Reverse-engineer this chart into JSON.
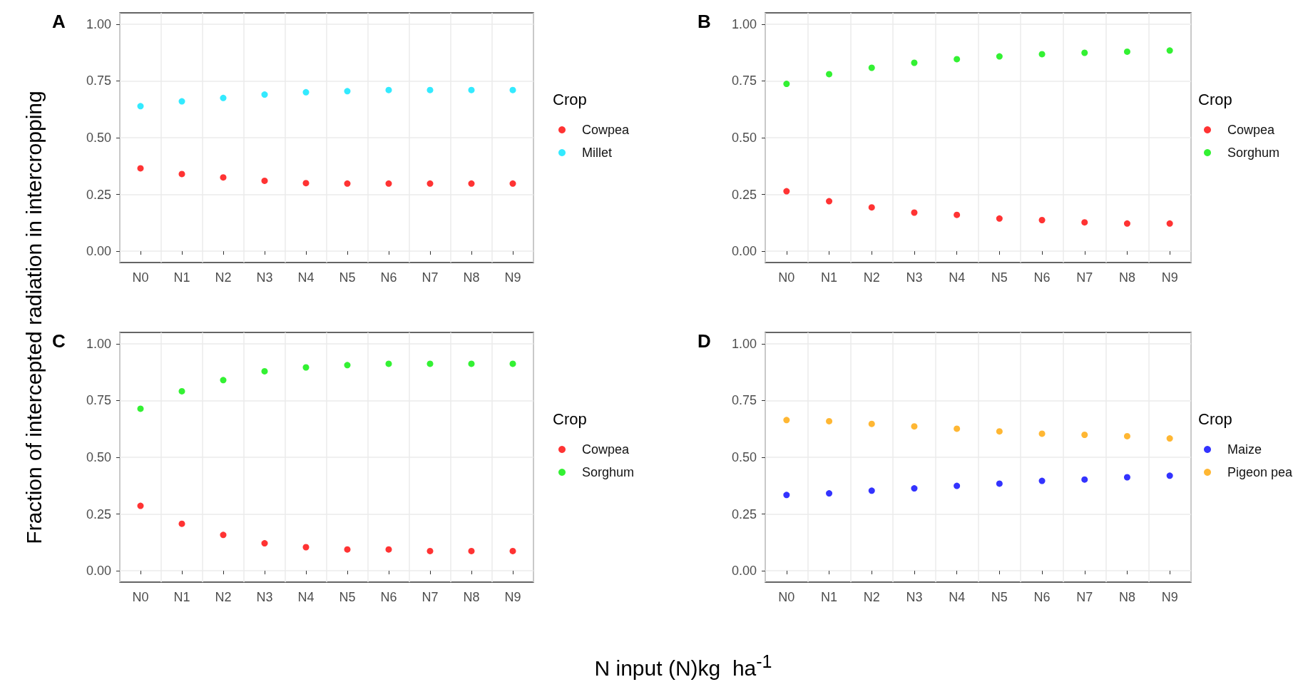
{
  "chart_data": [
    {
      "type": "scatter",
      "title": "A",
      "ylabel": "Fraction of intercepted radiation in intercropping",
      "legend_title": "Crop",
      "categories": [
        "N0",
        "N1",
        "N2",
        "N3",
        "N4",
        "N5",
        "N6",
        "N7",
        "N8",
        "N9"
      ],
      "series": [
        {
          "name": "Cowpea",
          "color": "#ff0000",
          "values": [
            0.365,
            0.34,
            0.325,
            0.31,
            0.3,
            0.298,
            0.298,
            0.298,
            0.298,
            0.298
          ]
        },
        {
          "name": "Millet",
          "color": "#00e5ff",
          "values": [
            0.639,
            0.66,
            0.675,
            0.69,
            0.7,
            0.705,
            0.71,
            0.71,
            0.71,
            0.71
          ]
        }
      ],
      "ylim": [
        -0.05,
        1.05
      ],
      "yticks": [
        {
          "value": 0,
          "label": "0.00"
        },
        {
          "value": 0.25,
          "label": "0.25"
        },
        {
          "value": 0.5,
          "label": "0.50"
        },
        {
          "value": 0.75,
          "label": "0.75"
        },
        {
          "value": 1,
          "label": "1.00"
        }
      ],
      "grid": true,
      "legend": "right",
      "marker": "circle"
    },
    {
      "type": "scatter",
      "title": "B",
      "legend_title": "Crop",
      "categories": [
        "N0",
        "N1",
        "N2",
        "N3",
        "N4",
        "N5",
        "N6",
        "N7",
        "N8",
        "N9"
      ],
      "series": [
        {
          "name": "Cowpea",
          "color": "#ff0000",
          "values": [
            0.264,
            0.22,
            0.193,
            0.17,
            0.16,
            0.144,
            0.137,
            0.127,
            0.122,
            0.122
          ]
        },
        {
          "name": "Sorghum",
          "color": "#00ee00",
          "values": [
            0.737,
            0.78,
            0.808,
            0.83,
            0.846,
            0.858,
            0.868,
            0.874,
            0.879,
            0.884
          ]
        }
      ],
      "ylim": [
        -0.05,
        1.05
      ],
      "yticks": [
        {
          "value": 0,
          "label": "0.00"
        },
        {
          "value": 0.25,
          "label": "0.25"
        },
        {
          "value": 0.5,
          "label": "0.50"
        },
        {
          "value": 0.75,
          "label": "0.75"
        },
        {
          "value": 1,
          "label": "1.00"
        }
      ],
      "grid": true,
      "legend": "right",
      "marker": "circle"
    },
    {
      "type": "scatter",
      "title": "C",
      "xlabel": "N input (N)kg  ha$^{-1}$",
      "legend_title": "Crop",
      "categories": [
        "N0",
        "N1",
        "N2",
        "N3",
        "N4",
        "N5",
        "N6",
        "N7",
        "N8",
        "N9"
      ],
      "series": [
        {
          "name": "Cowpea",
          "color": "#ff0000",
          "values": [
            0.286,
            0.207,
            0.158,
            0.121,
            0.104,
            0.094,
            0.094,
            0.087,
            0.087,
            0.087
          ]
        },
        {
          "name": "Sorghum",
          "color": "#00ee00",
          "values": [
            0.714,
            0.791,
            0.84,
            0.879,
            0.896,
            0.906,
            0.912,
            0.912,
            0.912,
            0.912
          ]
        }
      ],
      "ylim": [
        -0.05,
        1.05
      ],
      "yticks": [
        {
          "value": 0,
          "label": "0.00"
        },
        {
          "value": 0.25,
          "label": "0.25"
        },
        {
          "value": 0.5,
          "label": "0.50"
        },
        {
          "value": 0.75,
          "label": "0.75"
        },
        {
          "value": 1,
          "label": "1.00"
        }
      ],
      "grid": true,
      "legend": "right",
      "marker": "circle"
    },
    {
      "type": "scatter",
      "title": "D",
      "legend_title": "Crop",
      "categories": [
        "N0",
        "N1",
        "N2",
        "N3",
        "N4",
        "N5",
        "N6",
        "N7",
        "N8",
        "N9"
      ],
      "series": [
        {
          "name": "Maize",
          "color": "#0000ff",
          "values": [
            0.334,
            0.341,
            0.353,
            0.363,
            0.374,
            0.384,
            0.396,
            0.402,
            0.412,
            0.419
          ]
        },
        {
          "name": "Pigeon pea",
          "color": "#ffa500",
          "values": [
            0.664,
            0.659,
            0.647,
            0.636,
            0.626,
            0.614,
            0.604,
            0.599,
            0.593,
            0.583
          ]
        }
      ],
      "ylim": [
        -0.05,
        1.05
      ],
      "yticks": [
        {
          "value": 0,
          "label": "0.00"
        },
        {
          "value": 0.25,
          "label": "0.25"
        },
        {
          "value": 0.5,
          "label": "0.50"
        },
        {
          "value": 0.75,
          "label": "0.75"
        },
        {
          "value": 1,
          "label": "1.00"
        }
      ],
      "grid": true,
      "legend": "right",
      "marker": "circle"
    }
  ]
}
